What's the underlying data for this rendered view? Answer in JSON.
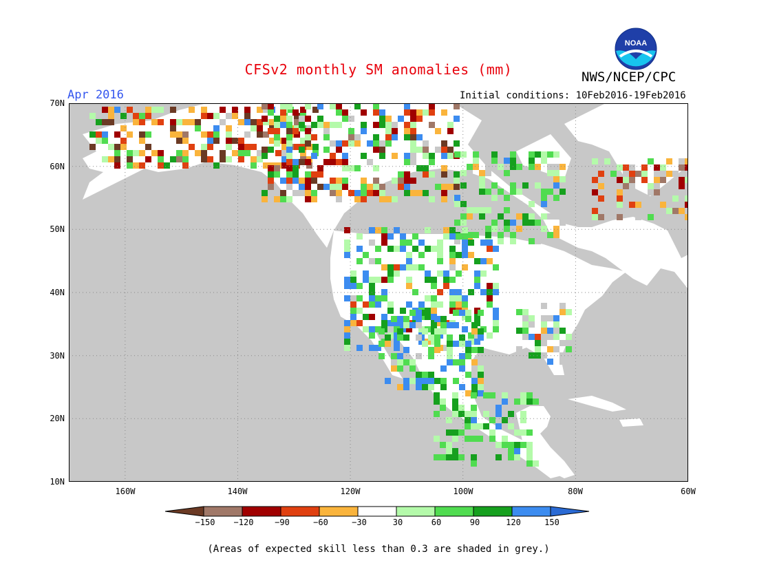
{
  "header": {
    "title": "CFSv2 monthly SM anomalies (mm)",
    "agency": "NWS/NCEP/CPC",
    "valid_month": "Apr 2016",
    "initial_conditions": "Initial conditions: 10Feb2016-19Feb2016",
    "logo_text": "NOAA"
  },
  "map": {
    "lat_labels": [
      "70N",
      "60N",
      "50N",
      "40N",
      "30N",
      "20N",
      "10N"
    ],
    "lon_labels": [
      "160W",
      "140W",
      "120W",
      "100W",
      "80W",
      "60W"
    ],
    "lat_range": [
      10,
      70
    ],
    "lon_range": [
      -170,
      -60
    ],
    "grid": "dotted",
    "mask_color": "#c8c8c8",
    "land_color": "#ffffff",
    "ocean_color": "#c8c8c8"
  },
  "colorbar": {
    "labels": [
      "−150",
      "−120",
      "−90",
      "−60",
      "−30",
      "30",
      "60",
      "90",
      "120",
      "150"
    ],
    "colors": [
      "#6b3a24",
      "#a07868",
      "#a00000",
      "#e04010",
      "#fab43c",
      "#ffffff",
      "#b4faaa",
      "#50dc50",
      "#16a01e",
      "#3c8cf0",
      "#2a6ad4"
    ]
  },
  "footnote": "(Areas of expected skill less than 0.3 are shaded in grey.)"
}
